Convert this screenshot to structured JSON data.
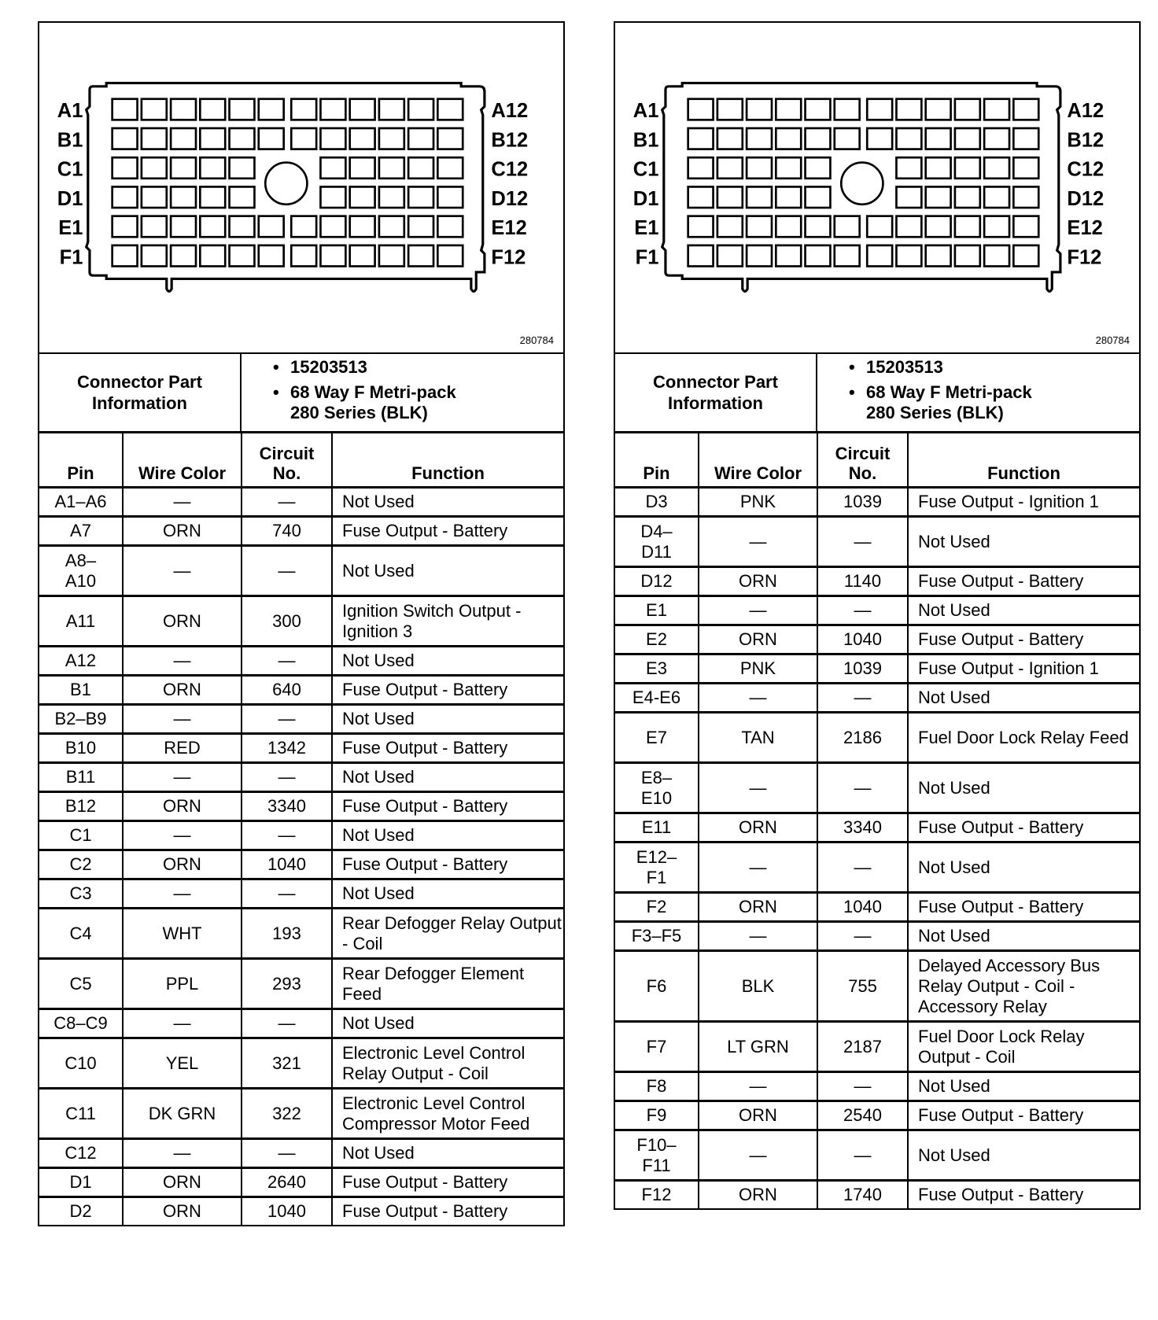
{
  "connector": {
    "row_labels_left": [
      "A1",
      "B1",
      "C1",
      "D1",
      "E1",
      "F1"
    ],
    "row_labels_right": [
      "A12",
      "B12",
      "C12",
      "D12",
      "E12",
      "F12"
    ],
    "figure_code": "280784",
    "info_label": "Connector Part Information",
    "info_items": [
      "15203513",
      "68 Way F Metri-pack 280 Series (BLK)"
    ]
  },
  "table_headers": {
    "pin": "Pin",
    "wire_color": "Wire Color",
    "circuit": "Circuit No.",
    "function": "Function"
  },
  "panels": [
    {
      "rows": [
        {
          "pin": "A1–A6",
          "wire": "—",
          "circuit": "—",
          "function": "Not Used",
          "lines": 1
        },
        {
          "pin": "A7",
          "wire": "ORN",
          "circuit": "740",
          "function": "Fuse Output - Battery",
          "lines": 1
        },
        {
          "pin": "A8– A10",
          "wire": "—",
          "circuit": "—",
          "function": "Not Used",
          "lines": 2
        },
        {
          "pin": "A11",
          "wire": "ORN",
          "circuit": "300",
          "function": "Ignition Switch Output - Ignition 3",
          "lines": 2
        },
        {
          "pin": "A12",
          "wire": "—",
          "circuit": "—",
          "function": "Not Used",
          "lines": 1
        },
        {
          "pin": "B1",
          "wire": "ORN",
          "circuit": "640",
          "function": "Fuse Output - Battery",
          "lines": 1
        },
        {
          "pin": "B2–B9",
          "wire": "—",
          "circuit": "—",
          "function": "Not Used",
          "lines": 1
        },
        {
          "pin": "B10",
          "wire": "RED",
          "circuit": "1342",
          "function": "Fuse Output - Battery",
          "lines": 1
        },
        {
          "pin": "B11",
          "wire": "—",
          "circuit": "—",
          "function": "Not Used",
          "lines": 1
        },
        {
          "pin": "B12",
          "wire": "ORN",
          "circuit": "3340",
          "function": "Fuse Output - Battery",
          "lines": 1
        },
        {
          "pin": "C1",
          "wire": "—",
          "circuit": "—",
          "function": "Not Used",
          "lines": 1
        },
        {
          "pin": "C2",
          "wire": "ORN",
          "circuit": "1040",
          "function": "Fuse Output - Battery",
          "lines": 1
        },
        {
          "pin": "C3",
          "wire": "—",
          "circuit": "—",
          "function": "Not Used",
          "lines": 1
        },
        {
          "pin": "C4",
          "wire": "WHT",
          "circuit": "193",
          "function": "Rear Defogger Relay Output - Coil",
          "lines": 2
        },
        {
          "pin": "C5",
          "wire": "PPL",
          "circuit": "293",
          "function": "Rear Defogger Element Feed",
          "lines": 2
        },
        {
          "pin": "C8–C9",
          "wire": "—",
          "circuit": "—",
          "function": "Not Used",
          "lines": 1
        },
        {
          "pin": "C10",
          "wire": "YEL",
          "circuit": "321",
          "function": "Electronic Level Control Relay Output - Coil",
          "lines": 2
        },
        {
          "pin": "C11",
          "wire": "DK GRN",
          "circuit": "322",
          "function": "Electronic Level Control Compressor Motor Feed",
          "lines": 2
        },
        {
          "pin": "C12",
          "wire": "—",
          "circuit": "—",
          "function": "Not Used",
          "lines": 1
        },
        {
          "pin": "D1",
          "wire": "ORN",
          "circuit": "2640",
          "function": "Fuse Output - Battery",
          "lines": 1
        },
        {
          "pin": "D2",
          "wire": "ORN",
          "circuit": "1040",
          "function": "Fuse Output - Battery",
          "lines": 1
        }
      ]
    },
    {
      "rows": [
        {
          "pin": "D3",
          "wire": "PNK",
          "circuit": "1039",
          "function": "Fuse Output - Ignition 1",
          "lines": 1
        },
        {
          "pin": "D4– D11",
          "wire": "—",
          "circuit": "—",
          "function": "Not Used",
          "lines": 2
        },
        {
          "pin": "D12",
          "wire": "ORN",
          "circuit": "1140",
          "function": "Fuse Output - Battery",
          "lines": 1
        },
        {
          "pin": "E1",
          "wire": "—",
          "circuit": "—",
          "function": "Not Used",
          "lines": 1
        },
        {
          "pin": "E2",
          "wire": "ORN",
          "circuit": "1040",
          "function": "Fuse Output - Battery",
          "lines": 1
        },
        {
          "pin": "E3",
          "wire": "PNK",
          "circuit": "1039",
          "function": "Fuse Output - Ignition 1",
          "lines": 1
        },
        {
          "pin": "E4-E6",
          "wire": "—",
          "circuit": "—",
          "function": "Not Used",
          "lines": 1
        },
        {
          "pin": "E7",
          "wire": "TAN",
          "circuit": "2186",
          "function": "Fuel Door Lock Relay Feed",
          "lines": 2
        },
        {
          "pin": "E8– E10",
          "wire": "—",
          "circuit": "—",
          "function": "Not Used",
          "lines": 2
        },
        {
          "pin": "E11",
          "wire": "ORN",
          "circuit": "3340",
          "function": "Fuse Output - Battery",
          "lines": 1
        },
        {
          "pin": "E12– F1",
          "wire": "—",
          "circuit": "—",
          "function": "Not Used",
          "lines": 2
        },
        {
          "pin": "F2",
          "wire": "ORN",
          "circuit": "1040",
          "function": "Fuse Output - Battery",
          "lines": 1
        },
        {
          "pin": "F3–F5",
          "wire": "—",
          "circuit": "—",
          "function": "Not Used",
          "lines": 1
        },
        {
          "pin": "F6",
          "wire": "BLK",
          "circuit": "755",
          "function": "Delayed Accessory Bus Relay Output - Coil - Accessory Relay",
          "lines": 3
        },
        {
          "pin": "F7",
          "wire": "LT GRN",
          "circuit": "2187",
          "function": "Fuel Door Lock Relay Output - Coil",
          "lines": 2
        },
        {
          "pin": "F8",
          "wire": "—",
          "circuit": "—",
          "function": "Not Used",
          "lines": 1
        },
        {
          "pin": "F9",
          "wire": "ORN",
          "circuit": "2540",
          "function": "Fuse Output - Battery",
          "lines": 1
        },
        {
          "pin": "F10– F11",
          "wire": "—",
          "circuit": "—",
          "function": "Not Used",
          "lines": 2
        },
        {
          "pin": "F12",
          "wire": "ORN",
          "circuit": "1740",
          "function": "Fuse Output - Battery",
          "lines": 1
        }
      ]
    }
  ]
}
